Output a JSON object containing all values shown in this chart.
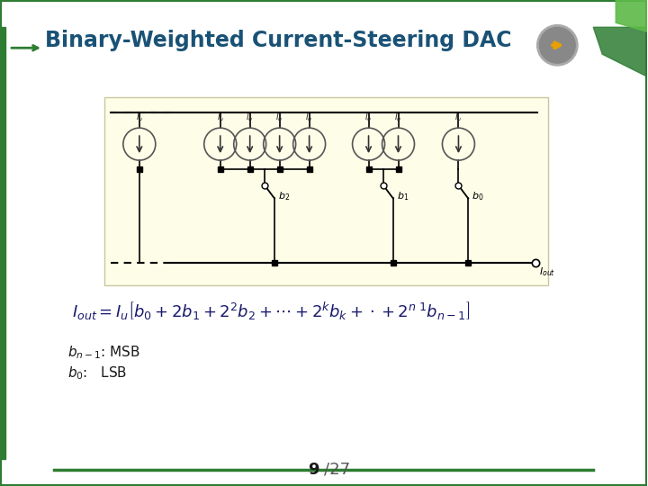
{
  "title": "Binary-Weighted Current-Steering DAC",
  "title_color": "#1a5276",
  "bg_color": "#ffffff",
  "slide_border_color": "#2e7d32",
  "formula": "$I_{out} = I_u \\left[b_0 + 2b_1 + 2^2b_2 + \\cdots + 2^k b_k + \\cdot + 2^{n\\ 1}b_{n-1}\\right]$",
  "label_msb": "$b_{n-1}$: MSB",
  "label_lsb": "$b_0$:   LSB",
  "page_num": "9",
  "page_total": "/27",
  "circuit_bg": "#fdfde8",
  "circuit_border": "#c8c8a0"
}
